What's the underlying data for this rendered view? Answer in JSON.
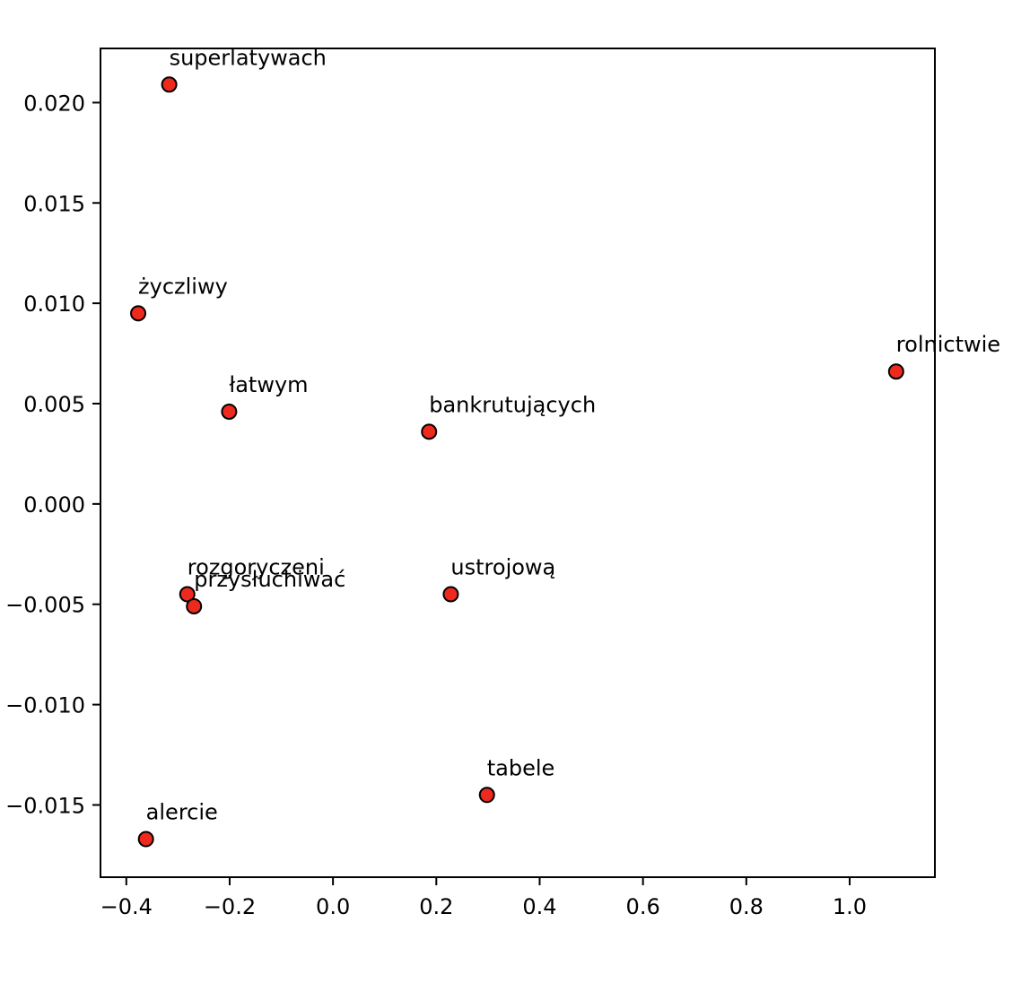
{
  "chart_data": {
    "type": "scatter",
    "title": "",
    "xlabel": "",
    "ylabel": "",
    "xlim": [
      -0.45,
      1.165
    ],
    "ylim": [
      -0.0186,
      0.0227
    ],
    "grid": false,
    "legend": "none",
    "x_ticks": [
      -0.4,
      -0.2,
      0.0,
      0.2,
      0.4,
      0.6,
      0.8,
      1.0
    ],
    "x_tick_labels": [
      "−0.4",
      "−0.2",
      "0.0",
      "0.2",
      "0.4",
      "0.6",
      "0.8",
      "1.0"
    ],
    "y_ticks": [
      -0.015,
      -0.01,
      -0.005,
      0.0,
      0.005,
      0.01,
      0.015,
      0.02
    ],
    "y_tick_labels": [
      "−0.015",
      "−0.010",
      "−0.005",
      "0.000",
      "0.005",
      "0.010",
      "0.015",
      "0.020"
    ],
    "marker_fill": "#ee2a1e",
    "marker_edge": "#000000",
    "points": [
      {
        "label": "superlatywach",
        "x": -0.317,
        "y": 0.0209
      },
      {
        "label": "życzliwy",
        "x": -0.377,
        "y": 0.0095
      },
      {
        "label": "łatwym",
        "x": -0.201,
        "y": 0.0046
      },
      {
        "label": "bankrutujących",
        "x": 0.186,
        "y": 0.0036
      },
      {
        "label": "rolnictwie",
        "x": 1.09,
        "y": 0.0066
      },
      {
        "label": "rozgoryczeni",
        "x": -0.282,
        "y": -0.0045
      },
      {
        "label": "przysłuchiwać",
        "x": -0.269,
        "y": -0.0051
      },
      {
        "label": "ustrojową",
        "x": 0.228,
        "y": -0.0045
      },
      {
        "label": "tabele",
        "x": 0.298,
        "y": -0.0145
      },
      {
        "label": "alercie",
        "x": -0.362,
        "y": -0.0167
      }
    ]
  }
}
